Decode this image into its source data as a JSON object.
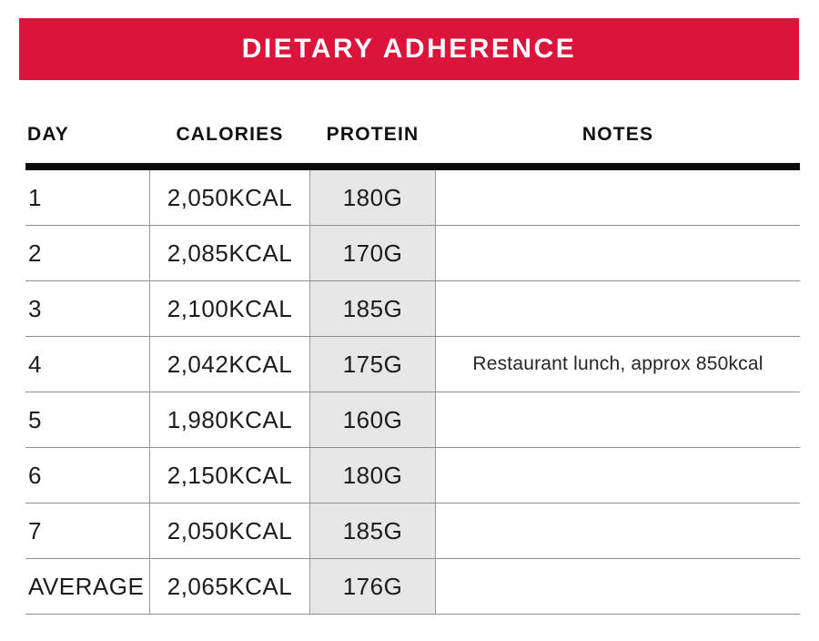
{
  "banner": {
    "label": "DIETARY ADHERENCE"
  },
  "table": {
    "columns": [
      {
        "key": "day",
        "label": "DAY"
      },
      {
        "key": "calories",
        "label": "CALORIES"
      },
      {
        "key": "protein",
        "label": "PROTEIN"
      },
      {
        "key": "notes",
        "label": "NOTES"
      }
    ],
    "rows": [
      {
        "day": "1",
        "calories": "2,050KCAL",
        "protein": "180G",
        "notes": ""
      },
      {
        "day": "2",
        "calories": "2,085KCAL",
        "protein": "170G",
        "notes": ""
      },
      {
        "day": "3",
        "calories": "2,100KCAL",
        "protein": "185G",
        "notes": ""
      },
      {
        "day": "4",
        "calories": "2,042KCAL",
        "protein": "175G",
        "notes": "Restaurant lunch, approx 850kcal"
      },
      {
        "day": "5",
        "calories": "1,980KCAL",
        "protein": "160G",
        "notes": ""
      },
      {
        "day": "6",
        "calories": "2,150KCAL",
        "protein": "180G",
        "notes": ""
      },
      {
        "day": "7",
        "calories": "2,050KCAL",
        "protein": "185G",
        "notes": ""
      },
      {
        "day": "AVERAGE",
        "calories": "2,065KCAL",
        "protein": "176G",
        "notes": ""
      }
    ]
  },
  "colors": {
    "banner_bg": "#DC143C",
    "banner_text": "#FFFFFF",
    "protein_column_bg": "#E6E6E6",
    "grid_line": "#8F8F8F",
    "header_rule": "#0B0B0B",
    "body_text": "#1C1C1C"
  }
}
